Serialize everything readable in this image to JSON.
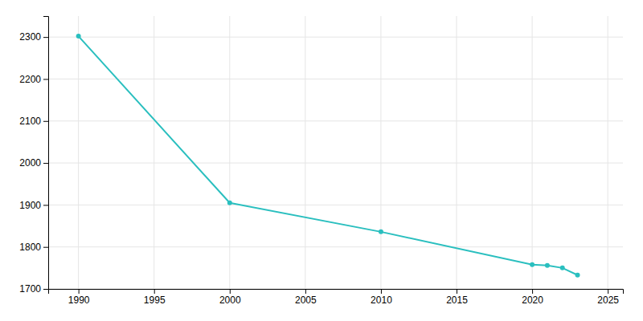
{
  "chart_data": {
    "type": "line",
    "x": [
      1990,
      2000,
      2010,
      2020,
      2021,
      2022,
      2023
    ],
    "values": [
      2302,
      1905,
      1836,
      1758,
      1756,
      1750,
      1733
    ],
    "color": "#2abfbf",
    "marker": "circle",
    "xlim": [
      1988,
      2026
    ],
    "ylim": [
      1700,
      2350
    ],
    "xticks": [
      1990,
      1995,
      2000,
      2005,
      2010,
      2015,
      2020,
      2025
    ],
    "yticks": [
      1700,
      1800,
      1900,
      2000,
      2100,
      2200,
      2300
    ],
    "grid": true
  }
}
